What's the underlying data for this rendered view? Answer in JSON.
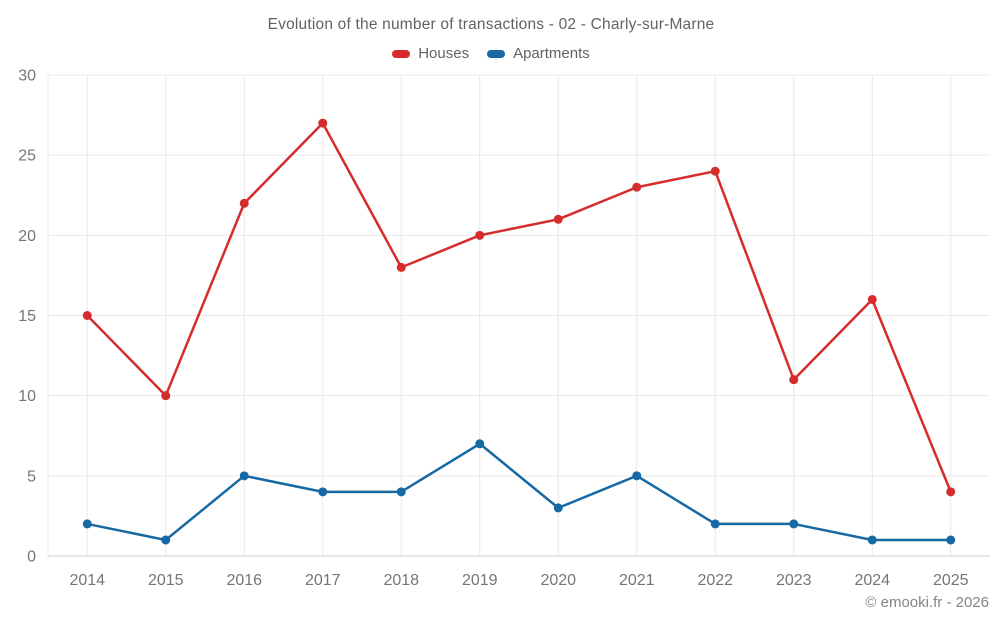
{
  "header": {
    "title": "Evolution of the number of transactions - 02 - Charly-sur-Marne"
  },
  "legend": [
    {
      "label": "Houses",
      "color": "#d62c2c"
    },
    {
      "label": "Apartments",
      "color": "#1769a5"
    }
  ],
  "footer": {
    "copyright": "© emooki.fr - 2026"
  },
  "colors": {
    "houses": "#d62c2c",
    "apartments": "#1769a5",
    "gridline": "#e9e9e9",
    "axis_line": "#cfcfcf",
    "tick_text": "#757575",
    "title_text": "#5f6368"
  },
  "chart_data": {
    "type": "line",
    "title": "Evolution of the number of transactions - 02 - Charly-sur-Marne",
    "categories": [
      "2014",
      "2015",
      "2016",
      "2017",
      "2018",
      "2019",
      "2020",
      "2021",
      "2022",
      "2023",
      "2024",
      "2025"
    ],
    "series": [
      {
        "name": "Houses",
        "color": "#d62c2c",
        "values": [
          15,
          10,
          22,
          27,
          18,
          20,
          21,
          23,
          24,
          11,
          16,
          4
        ]
      },
      {
        "name": "Apartments",
        "color": "#1769a5",
        "values": [
          2,
          1,
          5,
          4,
          4,
          7,
          3,
          5,
          2,
          2,
          1,
          1
        ]
      }
    ],
    "xlabel": "",
    "ylabel": "",
    "ylim": [
      0,
      30
    ],
    "yticks": [
      0,
      5,
      10,
      15,
      20,
      25,
      30
    ],
    "grid": true,
    "legend_position": "top"
  }
}
